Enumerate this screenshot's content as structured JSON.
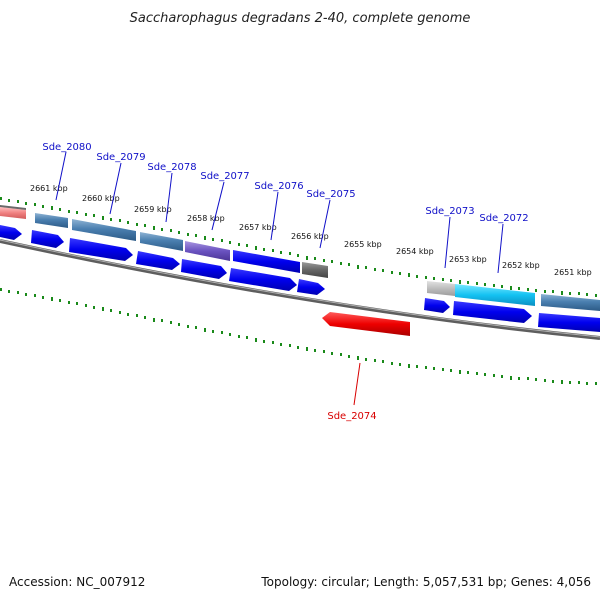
{
  "title": "Saccharophagus degradans 2-40, complete genome",
  "footer": {
    "accession": "Accession: NC_007912",
    "topology": "Topology: circular; Length: 5,057,531 bp; Genes: 4,056"
  },
  "colors": {
    "backbone": "#7a7a7a",
    "ticks": "#1a8a1a",
    "forward_cds": "#0000ee",
    "reverse_cds": "#ee0000",
    "label_forward": "#1010c8",
    "label_reverse": "#d80000"
  },
  "scale_labels": [
    "2661 kbp",
    "2660 kbp",
    "2659 kbp",
    "2658 kbp",
    "2657 kbp",
    "2656 kbp",
    "2655 kbp",
    "2654 kbp",
    "2653 kbp",
    "2652 kbp",
    "2651 kbp"
  ],
  "genes": [
    {
      "label": "Sde_2080",
      "strand": "forward"
    },
    {
      "label": "Sde_2079",
      "strand": "forward"
    },
    {
      "label": "Sde_2078",
      "strand": "forward"
    },
    {
      "label": "Sde_2077",
      "strand": "forward"
    },
    {
      "label": "Sde_2076",
      "strand": "forward"
    },
    {
      "label": "Sde_2075",
      "strand": "forward"
    },
    {
      "label": "Sde_2073",
      "strand": "forward"
    },
    {
      "label": "Sde_2072",
      "strand": "forward"
    },
    {
      "label": "Sde_2074",
      "strand": "reverse"
    }
  ]
}
